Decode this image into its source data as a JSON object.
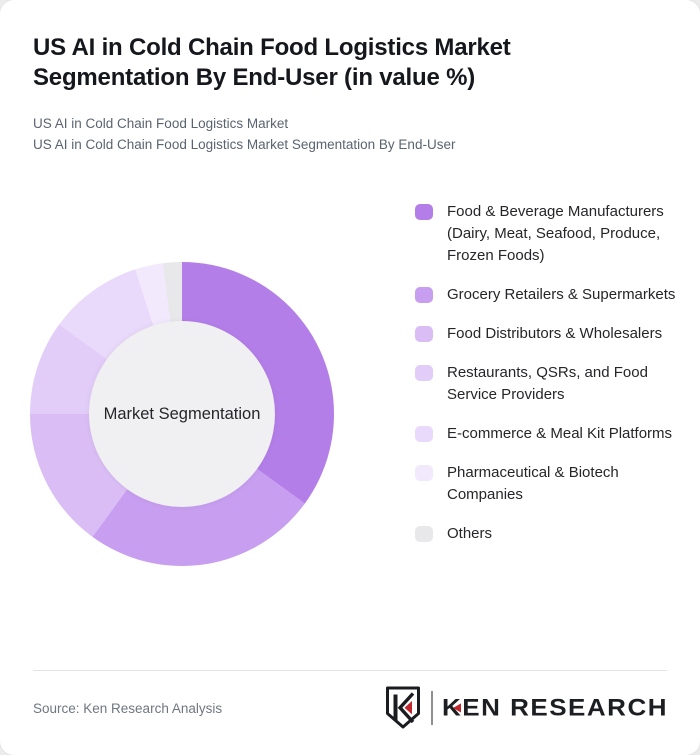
{
  "header": {
    "title": "US AI in Cold Chain Food Logistics Market Segmentation By End-User (in value %)",
    "subtitle1": "US AI in Cold Chain Food Logistics Market",
    "subtitle2": "US AI in Cold Chain Food Logistics Market Segmentation By End-User"
  },
  "chart_data": {
    "type": "pie",
    "subtype": "donut",
    "title": "US AI in Cold Chain Food Logistics Market Segmentation By End-User (in value %)",
    "center_label": "Market Segmentation",
    "unit": "value %",
    "start_angle_deg": 0,
    "direction": "clockwise",
    "legend_position": "right",
    "segments": [
      {
        "label": "Food & Beverage Manufacturers (Dairy, Meat, Seafood, Produce, Frozen Foods)",
        "value": 35,
        "color": "#b47ee9"
      },
      {
        "label": "Grocery Retailers & Supermarkets",
        "value": 25,
        "color": "#c89ef0"
      },
      {
        "label": "Food Distributors & Wholesalers",
        "value": 15,
        "color": "#d9bdf4"
      },
      {
        "label": "Restaurants, QSRs, and Food Service Providers",
        "value": 10,
        "color": "#e2ccf8"
      },
      {
        "label": "E-commerce & Meal Kit Platforms",
        "value": 10,
        "color": "#e9d9fa"
      },
      {
        "label": "Pharmaceutical & Biotech Companies",
        "value": 3,
        "color": "#f2e9fc"
      },
      {
        "label": "Others",
        "value": 2,
        "color": "#e8e8ea"
      }
    ],
    "hole_color": "#f0eff1"
  },
  "footer": {
    "source": "Source: Ken Research Analysis",
    "logo_text": "KEN RESEARCH"
  }
}
